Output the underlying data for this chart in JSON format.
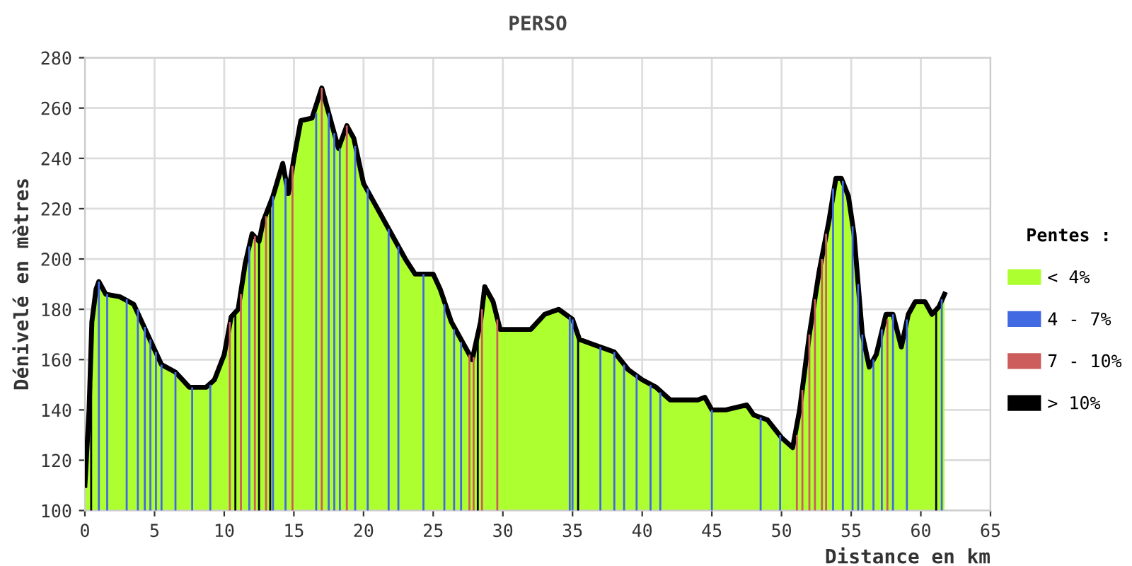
{
  "chart_data": {
    "type": "area",
    "title": "PERSO",
    "xlabel": "Distance en km",
    "ylabel": "Dénivelé en mètres",
    "legend_title": "Pentes :",
    "xlim": [
      0,
      65
    ],
    "xticks": [
      0,
      5,
      10,
      15,
      20,
      25,
      30,
      35,
      40,
      45,
      50,
      55,
      60,
      65
    ],
    "ylim": [
      100,
      280
    ],
    "yticks": [
      100,
      120,
      140,
      160,
      180,
      200,
      220,
      240,
      260,
      280
    ],
    "grid": true,
    "legend": "right",
    "marker": "none",
    "line_style": "solid",
    "series": [
      {
        "name": "< 4%",
        "color": "#adff2f",
        "x": [
          0,
          0.3,
          0.5,
          0.8,
          1.0,
          1.5,
          2.5,
          3.5,
          4.5,
          5.5,
          6.5,
          7,
          7.5,
          8.7,
          9.3,
          10,
          10.5,
          11,
          11.5,
          12,
          12.5,
          12.8,
          13.5,
          14.2,
          14.6,
          15,
          15.5,
          16.3,
          17,
          17.5,
          18.2,
          18.8,
          19.3,
          20,
          21,
          22,
          23,
          23.7,
          25,
          25.5,
          26.3,
          27.3,
          27.8,
          28.4,
          28.7,
          29.3,
          29.8,
          32,
          33,
          34,
          35,
          35.5,
          36.5,
          38,
          39,
          40,
          41,
          42,
          44,
          44.5,
          45,
          46,
          47.5,
          48,
          49,
          50,
          50.8,
          51.3,
          52,
          52.7,
          53.4,
          53.9,
          54.3,
          54.8,
          55.2,
          55.8,
          56.3,
          56.8,
          57.5,
          58,
          58.6,
          59.1,
          59.6,
          60.3,
          60.8,
          61.3,
          61.7
        ],
        "values": [
          110,
          140,
          175,
          188,
          191,
          186,
          185,
          182,
          170,
          158,
          155,
          152,
          149,
          149,
          152,
          162,
          177,
          180,
          198,
          210,
          207,
          215,
          225,
          238,
          226,
          240,
          255,
          256,
          268,
          258,
          244,
          253,
          248,
          230,
          220,
          210,
          200,
          194,
          194,
          188,
          175,
          165,
          160,
          175,
          189,
          183,
          172,
          172,
          178,
          180,
          176,
          168,
          166,
          163,
          156,
          152,
          149,
          144,
          144,
          145,
          140,
          140,
          142,
          138,
          136,
          129,
          125,
          140,
          170,
          195,
          215,
          232,
          232,
          225,
          210,
          170,
          157,
          162,
          178,
          178,
          165,
          178,
          183,
          183,
          178,
          181,
          186
        ]
      },
      {
        "name": "4 - 7%",
        "type": "bar",
        "color": "#4169e1",
        "x": [
          1.0,
          1.6,
          3.0,
          3.8,
          4.3,
          4.7,
          5.1,
          5.5,
          6.5,
          7.7,
          9.0,
          11.8,
          13.5,
          14.4,
          16.6,
          17.5,
          17.9,
          18.3,
          19.4,
          20.3,
          21.8,
          22.5,
          24.3,
          25.8,
          26.5,
          27.0,
          34.8,
          35.0,
          37.0,
          38.0,
          38.7,
          39.6,
          40.6,
          41.3,
          45.0,
          48.5,
          49.9,
          53.7,
          54.4,
          55.1,
          55.5,
          55.8,
          56.6,
          57.2,
          58.0,
          59.0,
          61.5
        ],
        "values": [
          191,
          186,
          184,
          180,
          173,
          168,
          163,
          158,
          155,
          149,
          150,
          205,
          225,
          232,
          258,
          258,
          250,
          244,
          245,
          228,
          212,
          205,
          194,
          182,
          172,
          167,
          177,
          176,
          165,
          163,
          158,
          154,
          150,
          147,
          140,
          137,
          130,
          228,
          231,
          213,
          190,
          170,
          160,
          172,
          178,
          176,
          184
        ]
      },
      {
        "name": "7 - 10%",
        "type": "bar",
        "color": "#cd5c5c",
        "x": [
          10.4,
          11.2,
          12.2,
          13.0,
          14.9,
          17.0,
          18.8,
          27.6,
          27.9,
          28.5,
          29.6,
          51.1,
          51.5,
          52.0,
          52.4,
          52.9,
          53.2,
          57.6
        ],
        "values": [
          175,
          186,
          209,
          217,
          237,
          268,
          253,
          162,
          161,
          180,
          176,
          130,
          148,
          170,
          184,
          200,
          210,
          176
        ]
      },
      {
        "name": "> 10%",
        "type": "bar",
        "color": "#000000",
        "x": [
          0.45,
          10.8,
          12.5,
          13.3,
          28.2,
          35.4,
          61.1
        ],
        "values": [
          150,
          178,
          207,
          222,
          168,
          170,
          180
        ]
      }
    ]
  }
}
